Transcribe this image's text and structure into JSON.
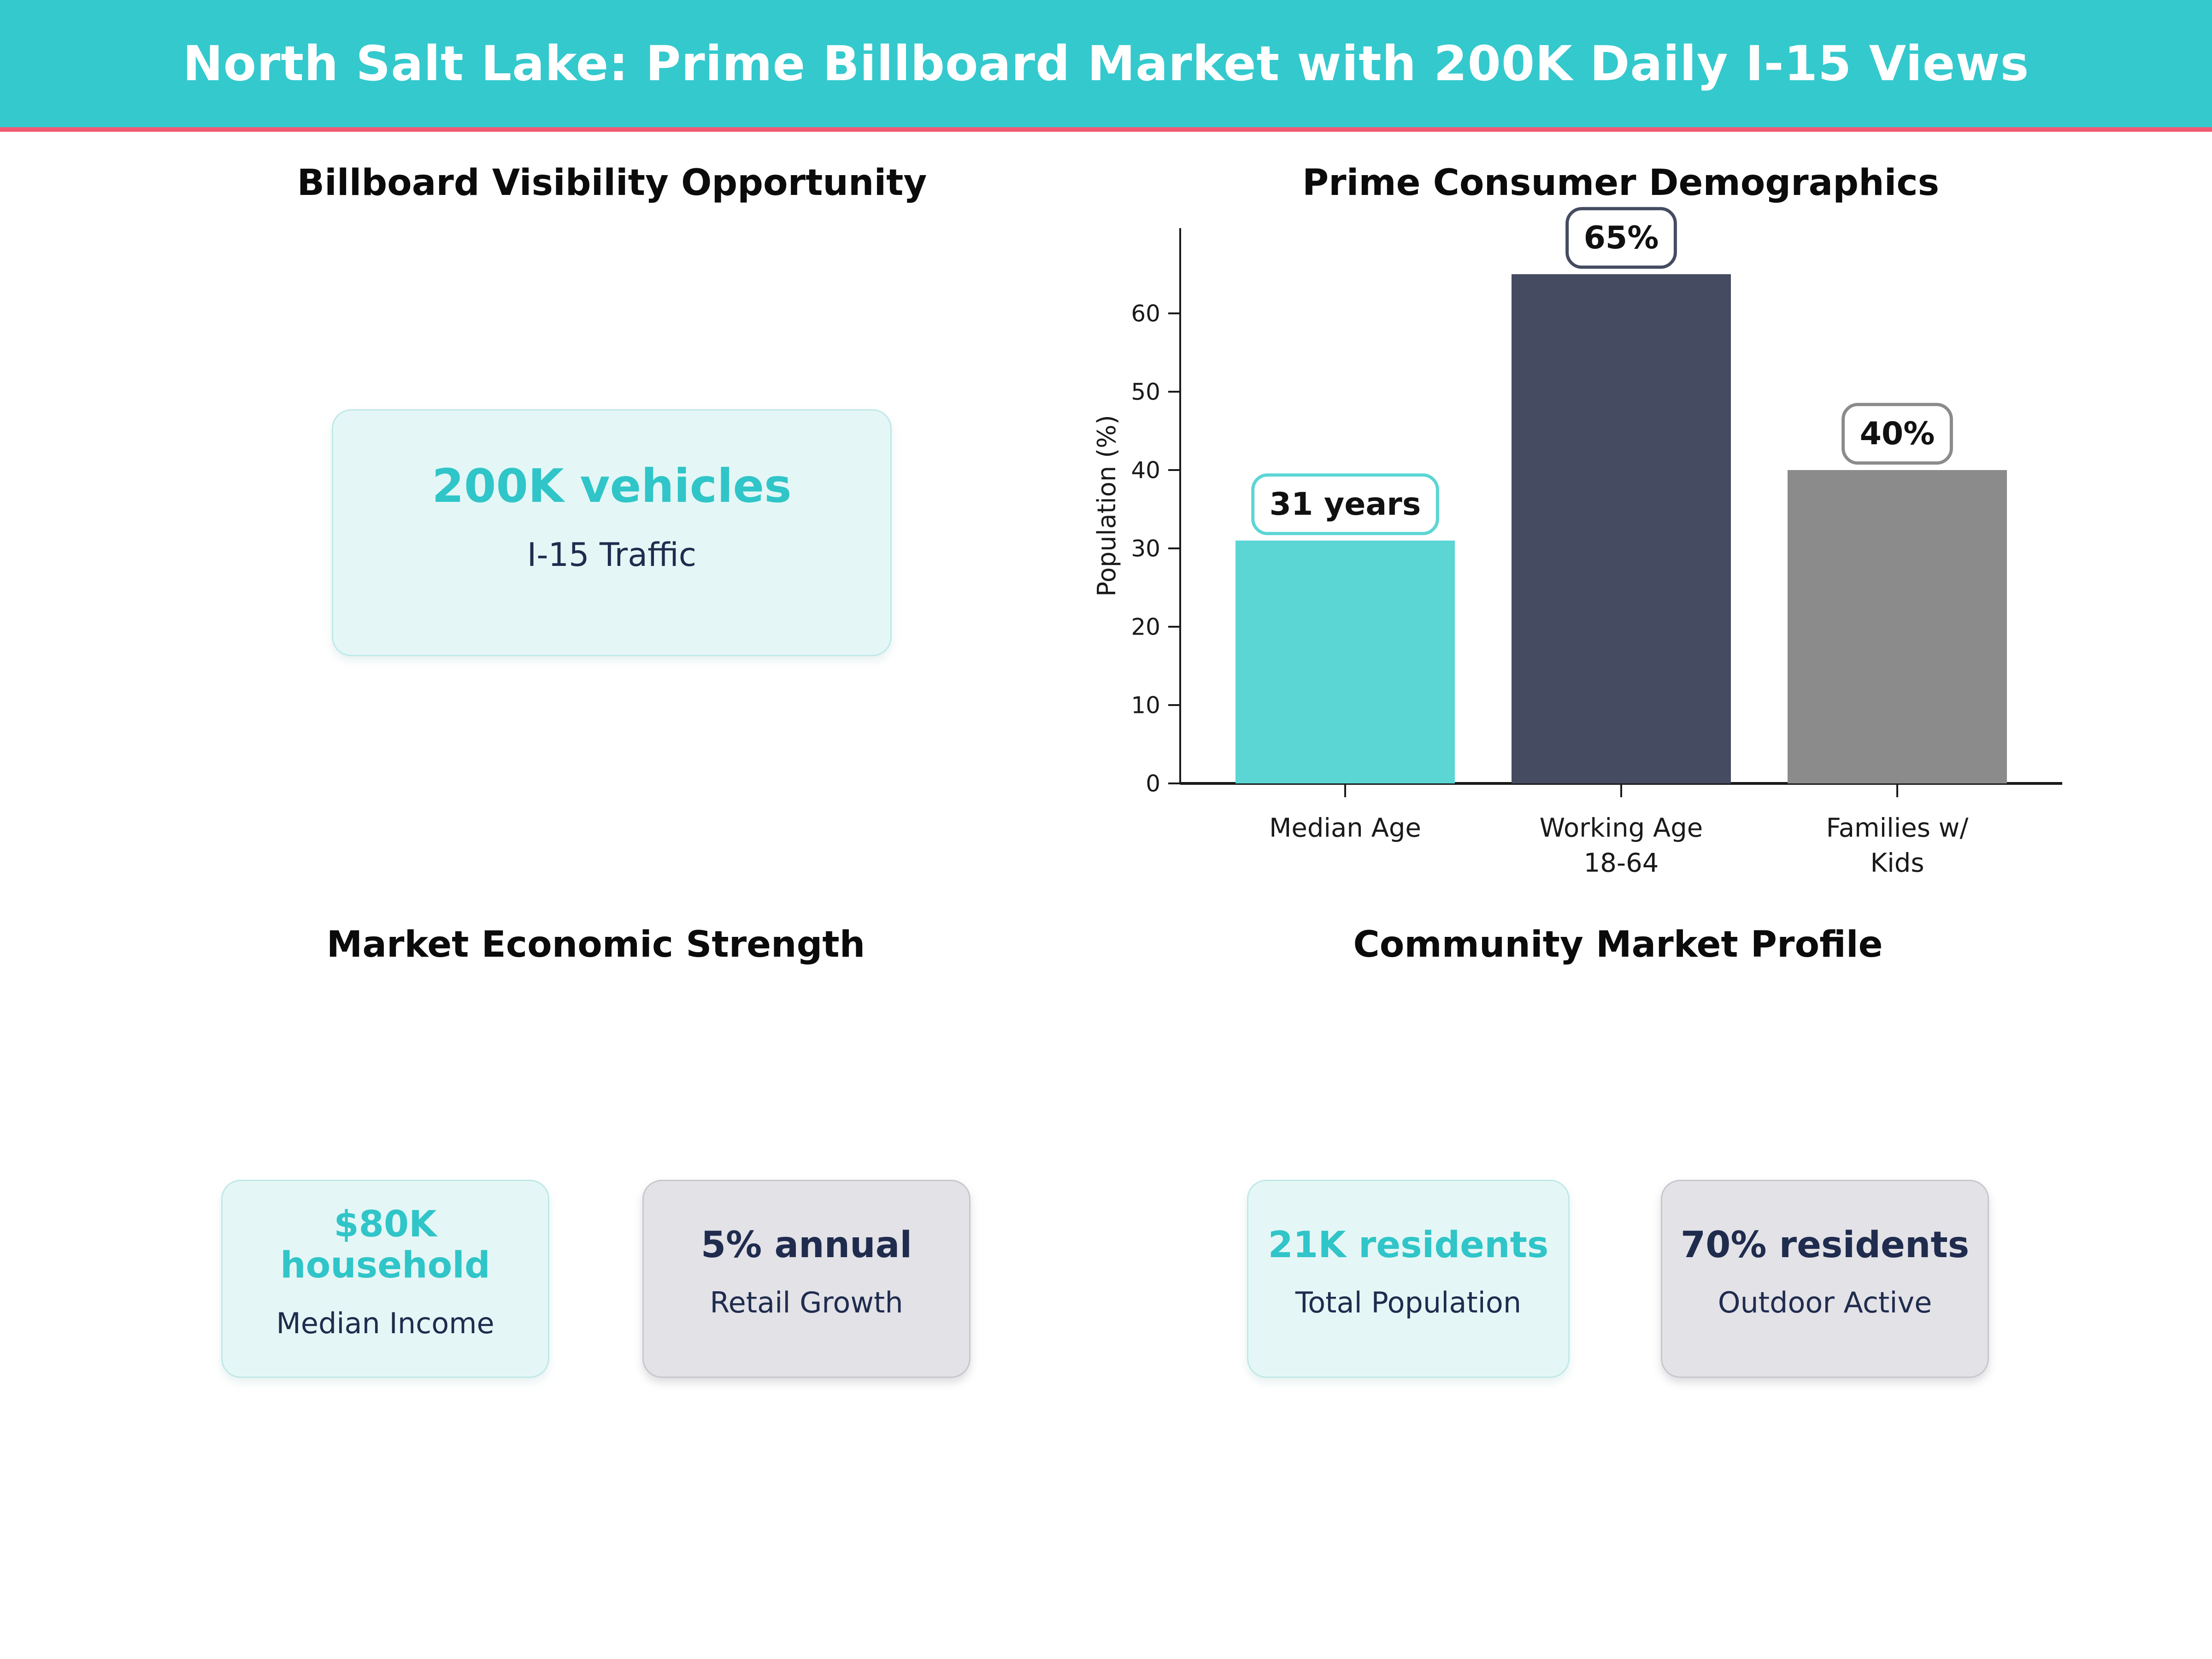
{
  "header": {
    "title": "North Salt Lake: Prime Billboard Market with 200K Daily I-15 Views"
  },
  "sections": {
    "billboard": {
      "title": "Billboard Visibility Opportunity",
      "card": {
        "value": "200K vehicles",
        "label": "I-15 Traffic"
      }
    },
    "demographics": {
      "title": "Prime Consumer Demographics"
    },
    "economic": {
      "title": "Market Economic Strength",
      "cards": [
        {
          "value": "$80K household",
          "label": "Median Income"
        },
        {
          "value": "5% annual",
          "label": "Retail Growth"
        }
      ]
    },
    "community": {
      "title": "Community Market Profile",
      "cards": [
        {
          "value": "21K residents",
          "label": "Total Population"
        },
        {
          "value": "70% residents",
          "label": "Outdoor Active"
        }
      ]
    }
  },
  "chart_data": {
    "type": "bar",
    "title": "Prime Consumer Demographics",
    "categories": [
      "Median Age",
      "Working Age\n18-64",
      "Families w/\nKids"
    ],
    "values": [
      31,
      65,
      40
    ],
    "annotations": [
      "31 years",
      "65%",
      "40%"
    ],
    "bar_colors": [
      "#5CD5D5",
      "#454C61",
      "#8B8B8B"
    ],
    "ylabel": "Population (%)",
    "yticks": [
      0,
      10,
      20,
      30,
      40,
      50,
      60
    ],
    "ylim": [
      0,
      71
    ],
    "grid": false,
    "legend": false
  },
  "colors": {
    "header_bg": "#34C9CD",
    "header_accent": "#EF5B75",
    "teal_text": "#30C5C8",
    "navy_text": "#202C4E",
    "bar_teal": "#5CD5D5",
    "bar_navy": "#454C61",
    "bar_gray": "#8B8B8B",
    "card_teal_bg": "#E4F7F6",
    "card_teal_border": "#BFE9E7",
    "card_gray_bg": "#E2E2E7",
    "card_gray_border": "#C7C7CE",
    "axis_color": "#1a1a1a"
  }
}
